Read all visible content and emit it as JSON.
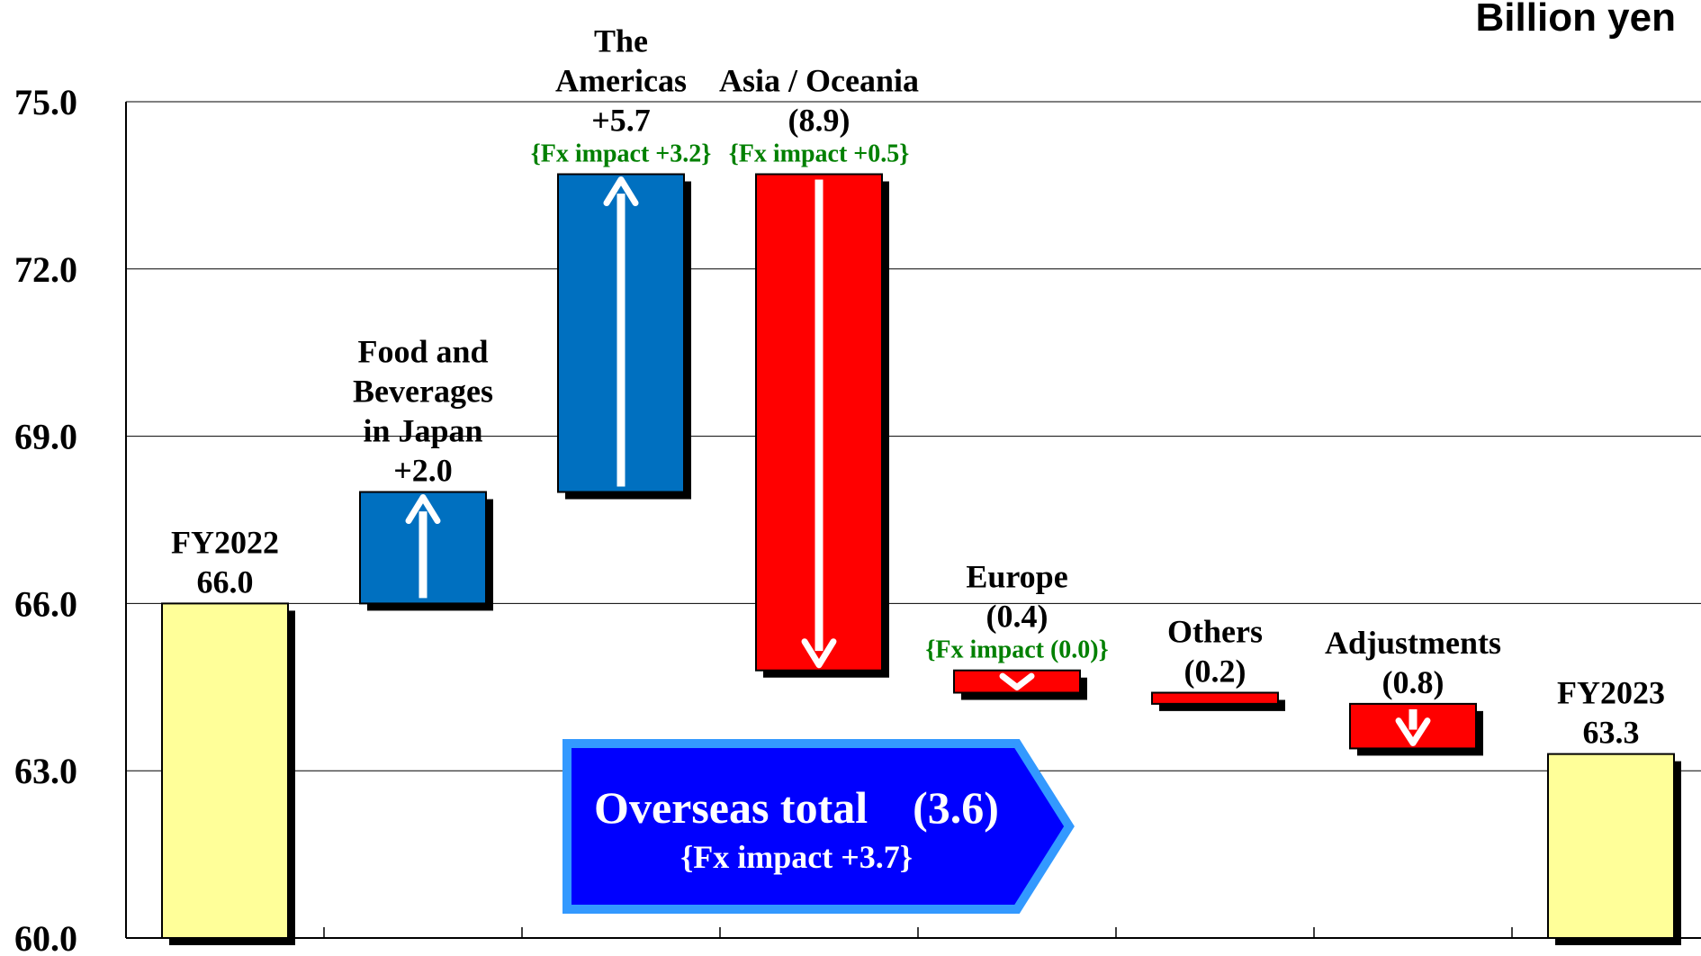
{
  "chart_data": {
    "type": "waterfall",
    "unit_label": "Billion yen",
    "ylim": [
      60.0,
      75.0
    ],
    "yticks": [
      "75.0",
      "72.0",
      "69.0",
      "66.0",
      "63.0",
      "60.0"
    ],
    "ytick_values": [
      75,
      72,
      69,
      66,
      63,
      60
    ],
    "grid": true,
    "colors": {
      "total": "#FFFF99",
      "increase": "#0070C0",
      "decrease": "#FF0000",
      "fx": "#008000",
      "callout_fill": "#0000FF",
      "callout_border": "#3399FF"
    },
    "bars": [
      {
        "label_lines": [
          "FY2022",
          "66.0"
        ],
        "kind": "total",
        "start": 60.0,
        "end": 66.0,
        "fx": ""
      },
      {
        "label_lines": [
          "Food and",
          "Beverages",
          "in Japan",
          "+2.0"
        ],
        "kind": "increase",
        "start": 66.0,
        "end": 68.0,
        "fx": ""
      },
      {
        "label_lines": [
          "The",
          "Americas",
          "+5.7"
        ],
        "kind": "increase",
        "start": 68.0,
        "end": 73.7,
        "fx": "{Fx impact +3.2}"
      },
      {
        "label_lines": [
          "Asia / Oceania",
          "(8.9)"
        ],
        "kind": "decrease",
        "start": 73.7,
        "end": 64.8,
        "fx": "{Fx impact +0.5}"
      },
      {
        "label_lines": [
          "Europe",
          "(0.4)"
        ],
        "kind": "decrease",
        "start": 64.8,
        "end": 64.4,
        "fx": "{Fx impact (0.0)}"
      },
      {
        "label_lines": [
          "Others",
          "(0.2)"
        ],
        "kind": "decrease",
        "start": 64.4,
        "end": 64.2,
        "fx": ""
      },
      {
        "label_lines": [
          "Adjustments",
          "(0.8)"
        ],
        "kind": "decrease",
        "start": 64.2,
        "end": 63.4,
        "fx": ""
      },
      {
        "label_lines": [
          "FY2023",
          "63.3"
        ],
        "kind": "total",
        "start": 60.0,
        "end": 63.3,
        "fx": ""
      }
    ],
    "callout": {
      "title": "Overseas total　(3.6)",
      "subtitle": "{Fx impact +3.7}"
    }
  }
}
